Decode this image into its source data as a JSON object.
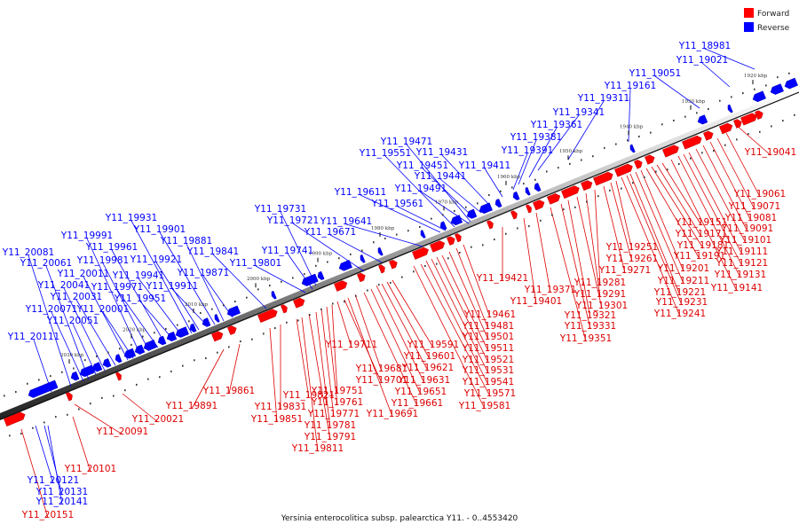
{
  "caption": "Yersinia enterocolitica subsp. palearctica Y11. - 0..4553420",
  "legend": [
    {
      "label": "Forward",
      "color": "#ff0000"
    },
    {
      "label": "Reverse",
      "color": "#0000ff"
    }
  ],
  "ticks": [
    "1920 kbp",
    "1930 kbp",
    "1940 kbp",
    "1950 kbp",
    "1960 kbp",
    "1970 kbp",
    "1980 kbp",
    "1990 kbp",
    "2000 kbp",
    "2010 kbp",
    "2020 kbp",
    "2030 kbp"
  ],
  "reverse_labels": [
    "Y11_18981",
    "Y11_19021",
    "Y11_19051",
    "Y11_19161",
    "Y11_19311",
    "Y11_19341",
    "Y11_19361",
    "Y11_19381",
    "Y11_19391",
    "Y11_19411",
    "Y11_19431",
    "Y11_19441",
    "Y11_19451",
    "Y11_19471",
    "Y11_19491",
    "Y11_19551",
    "Y11_19561",
    "Y11_19611",
    "Y11_19641",
    "Y11_19671",
    "Y11_19721",
    "Y11_19731",
    "Y11_19741",
    "Y11_19801",
    "Y11_19841",
    "Y11_19871",
    "Y11_19881",
    "Y11_19901",
    "Y11_19911",
    "Y11_19921",
    "Y11_19931",
    "Y11_19941",
    "Y11_19951",
    "Y11_19961",
    "Y11_19971",
    "Y11_19981",
    "Y11_19991",
    "Y11_20001",
    "Y11_20011",
    "Y11_20031",
    "Y11_20041",
    "Y11_20051",
    "Y11_20061",
    "Y11_20071",
    "Y11_20081",
    "Y11_20111",
    "Y11_20121",
    "Y11_20131",
    "Y11_20141"
  ],
  "forward_labels": [
    "Y11_19041",
    "Y11_19061",
    "Y11_19071",
    "Y11_19081",
    "Y11_19091",
    "Y11_19101",
    "Y11_19111",
    "Y11_19121",
    "Y11_19131",
    "Y11_19141",
    "Y11_19151",
    "Y11_19171",
    "Y11_19181",
    "Y11_19191",
    "Y11_19201",
    "Y11_19211",
    "Y11_19221",
    "Y11_19231",
    "Y11_19241",
    "Y11_19251",
    "Y11_19261",
    "Y11_19271",
    "Y11_19281",
    "Y11_19291",
    "Y11_19301",
    "Y11_19321",
    "Y11_19331",
    "Y11_19351",
    "Y11_19371",
    "Y11_19401",
    "Y11_19421",
    "Y11_19461",
    "Y11_19481",
    "Y11_19501",
    "Y11_19511",
    "Y11_19521",
    "Y11_19531",
    "Y11_19541",
    "Y11_19571",
    "Y11_19581",
    "Y11_19591",
    "Y11_19601",
    "Y11_19621",
    "Y11_19631",
    "Y11_19651",
    "Y11_19661",
    "Y11_19681",
    "Y11_19691",
    "Y11_19701",
    "Y11_19711",
    "Y11_19751",
    "Y11_19761",
    "Y11_19771",
    "Y11_19781",
    "Y11_19791",
    "Y11_19811",
    "Y11_19821",
    "Y11_19831",
    "Y11_19851",
    "Y11_19861",
    "Y11_19891",
    "Y11_20021",
    "Y11_20091",
    "Y11_20101",
    "Y11_20151"
  ]
}
